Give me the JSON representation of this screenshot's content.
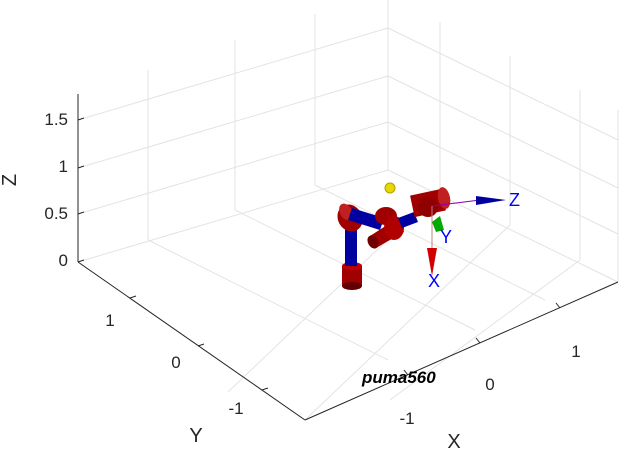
{
  "plot": {
    "robot_name": "puma560",
    "axes": {
      "x_label": "X",
      "y_label": "Y",
      "z_label": "Z",
      "x_ticks": [
        "-1",
        "0",
        "1"
      ],
      "y_ticks": [
        "-1",
        "0",
        "1"
      ],
      "z_ticks": [
        "0",
        "0.5",
        "1",
        "1.5"
      ]
    },
    "frame": {
      "x_label": "X",
      "y_label": "Y",
      "z_label": "Z",
      "x_color": "#ff0000",
      "y_color": "#00cc00",
      "z_color": "#0000ff"
    },
    "colors": {
      "link": "#0000a0",
      "joint": "#a00000",
      "joint_dark": "#600000",
      "marker": "#e6d800",
      "grid": "#e3e3e3",
      "axis": "#262626"
    }
  }
}
